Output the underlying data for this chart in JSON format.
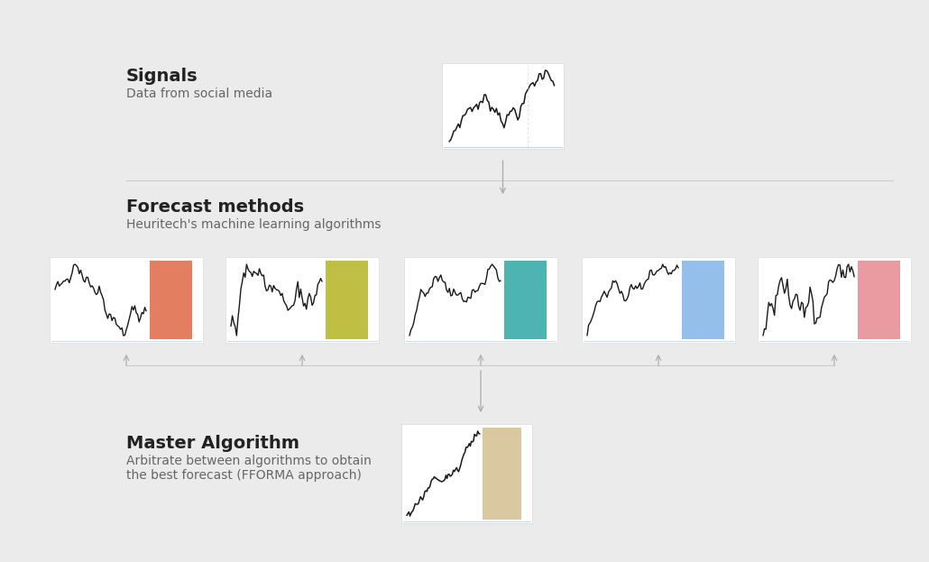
{
  "bg_color": "#ebebeb",
  "title_signals": "Signals",
  "subtitle_signals": "Data from social media",
  "title_forecast": "Forecast methods",
  "subtitle_forecast": "Heuritech's machine learning algorithms",
  "title_master": "Master Algorithm",
  "subtitle_master_1": "Arbitrate between algorithms to obtain",
  "subtitle_master_2": "the best forecast (FFORMA approach)",
  "bar_colors": [
    "#e07050",
    "#b8b830",
    "#3aacaa",
    "#88b8e8",
    "#e89098"
  ],
  "master_bar_color": "#d4c090",
  "line_color": "#1a1a1a",
  "separator_color": "#cccccc",
  "arrow_color": "#aaaaaa",
  "mini_chart_bg": "#ffffff",
  "mini_chart_border": "#dddddd",
  "text_title_color": "#222222",
  "text_sub_color": "#666666"
}
